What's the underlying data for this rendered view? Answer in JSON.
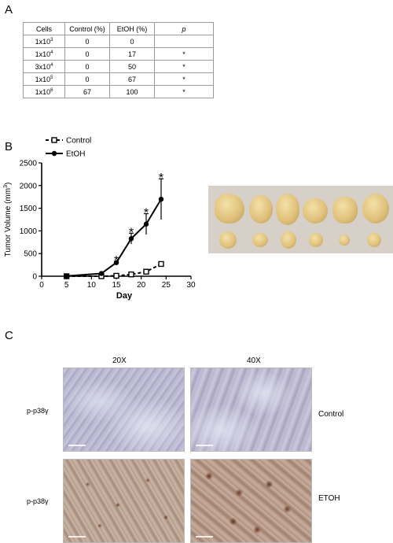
{
  "panels": {
    "a": "A",
    "b": "B",
    "c": "C"
  },
  "table": {
    "headers": [
      "Cells",
      "Control (%)",
      "EtOH (%)",
      "p"
    ],
    "rows": [
      {
        "base": "1x10",
        "exp": "3",
        "control": "0",
        "etoh": "0",
        "p": ""
      },
      {
        "base": "1x10",
        "exp": "4",
        "control": "0",
        "etoh": "17",
        "p": "*"
      },
      {
        "base": "3x10",
        "exp": "4",
        "control": "0",
        "etoh": "50",
        "p": "*"
      },
      {
        "base": "1x10",
        "exp": "5",
        "control": "0",
        "etoh": "67",
        "p": "*"
      },
      {
        "base": "1x10",
        "exp": "6",
        "control": "67",
        "etoh": "100",
        "p": "*"
      }
    ]
  },
  "chart_data": {
    "type": "line",
    "xlabel": "Day",
    "ylabel": "Tumor Volume (mm",
    "ylabel_sup": "3",
    "ylabel_end": ")",
    "xlim": [
      0,
      30
    ],
    "ylim": [
      0,
      2500
    ],
    "xticks": [
      0,
      5,
      10,
      15,
      20,
      25,
      30
    ],
    "yticks": [
      0,
      500,
      1000,
      1500,
      2000,
      2500
    ],
    "grid": false,
    "legend_position": "top-left",
    "series": [
      {
        "name": "Control",
        "marker": "open-square",
        "dash": true,
        "x": [
          5,
          12,
          15,
          18,
          21,
          24
        ],
        "y": [
          0,
          0,
          10,
          40,
          100,
          270
        ],
        "err": [
          0,
          0,
          0,
          10,
          20,
          35
        ]
      },
      {
        "name": "EtOH",
        "marker": "filled-circle",
        "dash": false,
        "x": [
          5,
          12,
          15,
          18,
          21,
          24
        ],
        "y": [
          5,
          60,
          300,
          830,
          1150,
          1700
        ],
        "err": [
          0,
          10,
          30,
          120,
          230,
          450
        ]
      }
    ],
    "annotations": [
      {
        "x": 15,
        "y": 330,
        "text": "*"
      },
      {
        "x": 18,
        "y": 950,
        "text": "*"
      },
      {
        "x": 21,
        "y": 1380,
        "text": "*"
      },
      {
        "x": 24,
        "y": 2150,
        "text": "*"
      }
    ]
  },
  "micrographs": {
    "columns": [
      "20X",
      "40X"
    ],
    "row_labels": [
      "p-p38γ",
      "p-p38γ"
    ],
    "conditions": [
      "Control",
      "ETOH"
    ]
  }
}
